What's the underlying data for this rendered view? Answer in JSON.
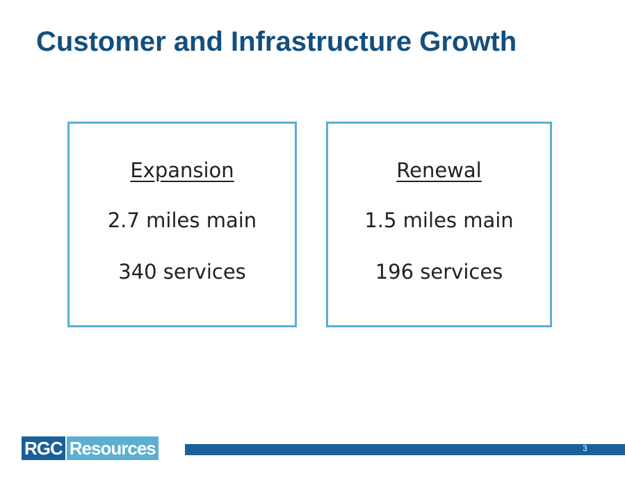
{
  "header": {
    "title": "Customer and Infrastructure Growth"
  },
  "boxes": [
    {
      "heading": "Expansion",
      "lines": [
        "2.7 miles main",
        "340 services"
      ]
    },
    {
      "heading": "Renewal",
      "lines": [
        "1.5 miles main",
        "196 services"
      ]
    }
  ],
  "footer": {
    "logo_left": "RGC",
    "logo_right": "Resources",
    "page_number": "3"
  }
}
